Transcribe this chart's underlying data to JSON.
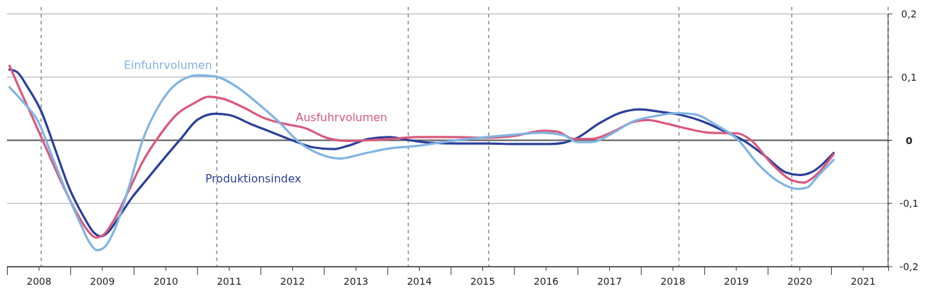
{
  "chart_data": {
    "type": "line",
    "xlim": [
      2008,
      2021.9
    ],
    "ylim": [
      -0.2,
      0.2
    ],
    "xticks": [
      {
        "value": 2008,
        "label": null
      },
      {
        "value": 2008.5,
        "label": "2008"
      },
      {
        "value": 2009,
        "label": null
      },
      {
        "value": 2009.5,
        "label": "2009"
      },
      {
        "value": 2010,
        "label": null
      },
      {
        "value": 2010.5,
        "label": "2010"
      },
      {
        "value": 2011,
        "label": null
      },
      {
        "value": 2011.5,
        "label": "2011"
      },
      {
        "value": 2012,
        "label": null
      },
      {
        "value": 2012.5,
        "label": "2012"
      },
      {
        "value": 2013,
        "label": null
      },
      {
        "value": 2013.5,
        "label": "2013"
      },
      {
        "value": 2014,
        "label": null
      },
      {
        "value": 2014.5,
        "label": "2014"
      },
      {
        "value": 2015,
        "label": null
      },
      {
        "value": 2015.5,
        "label": "2015"
      },
      {
        "value": 2016,
        "label": null
      },
      {
        "value": 2016.5,
        "label": "2016"
      },
      {
        "value": 2017,
        "label": null
      },
      {
        "value": 2017.5,
        "label": "2017"
      },
      {
        "value": 2018,
        "label": null
      },
      {
        "value": 2018.5,
        "label": "2018"
      },
      {
        "value": 2019,
        "label": null
      },
      {
        "value": 2019.5,
        "label": "2019"
      },
      {
        "value": 2020,
        "label": null
      },
      {
        "value": 2020.5,
        "label": "2020"
      },
      {
        "value": 2021,
        "label": null
      },
      {
        "value": 2021.5,
        "label": "2021"
      }
    ],
    "yticks": [
      {
        "value": 0.2,
        "label": "0,2"
      },
      {
        "value": 0.1,
        "label": "0,1"
      },
      {
        "value": 0,
        "label": "0"
      },
      {
        "value": -0.1,
        "label": "-0,1"
      },
      {
        "value": -0.2,
        "label": "-0,2"
      }
    ],
    "grid": "y",
    "line_style": "solid",
    "marker": "none",
    "ref_lines": [
      {
        "axis": "y",
        "value": 0,
        "color": "#555555",
        "line_style": "solid"
      },
      {
        "axis": "x",
        "value": 2008.54,
        "color": "#888888",
        "line_style": "dashed"
      },
      {
        "axis": "x",
        "value": 2011.31,
        "color": "#888888",
        "line_style": "dashed"
      },
      {
        "axis": "x",
        "value": 2014.33,
        "color": "#888888",
        "line_style": "dashed"
      },
      {
        "axis": "x",
        "value": 2015.6,
        "color": "#888888",
        "line_style": "dashed"
      },
      {
        "axis": "x",
        "value": 2018.6,
        "color": "#888888",
        "line_style": "dashed"
      },
      {
        "axis": "x",
        "value": 2020.38,
        "color": "#888888",
        "line_style": "dashed"
      },
      {
        "axis": "x",
        "value": 2021.9,
        "color": "#888888",
        "line_style": "dashed"
      }
    ],
    "series": [
      {
        "name": "Produktionsindex",
        "color": "#2b3f98",
        "x": [
          2008.04,
          2008.16,
          2008.32,
          2008.54,
          2008.76,
          2008.98,
          2009.2,
          2009.37,
          2009.48,
          2009.59,
          2009.75,
          2009.97,
          2010.19,
          2010.46,
          2010.74,
          2011.01,
          2011.29,
          2011.51,
          2011.84,
          2012.17,
          2012.5,
          2012.82,
          2013.15,
          2013.37,
          2013.7,
          2014.03,
          2014.36,
          2014.69,
          2015.13,
          2015.57,
          2016.01,
          2016.56,
          2016.78,
          2017.0,
          2017.33,
          2017.66,
          2017.98,
          2018.31,
          2018.64,
          2018.97,
          2019.3,
          2019.63,
          2019.96,
          2020.29,
          2020.51,
          2020.68,
          2021.04
        ],
        "values": [
          0.112,
          0.108,
          0.085,
          0.046,
          -0.014,
          -0.075,
          -0.119,
          -0.146,
          -0.152,
          -0.146,
          -0.124,
          -0.091,
          -0.064,
          -0.031,
          0.002,
          0.033,
          0.042,
          0.04,
          0.026,
          0.013,
          0.0,
          -0.011,
          -0.014,
          -0.009,
          0.002,
          0.005,
          0.0,
          -0.004,
          -0.005,
          -0.005,
          -0.006,
          -0.006,
          -0.004,
          0.004,
          0.026,
          0.043,
          0.049,
          0.045,
          0.04,
          0.03,
          0.015,
          -0.001,
          -0.025,
          -0.051,
          -0.055,
          -0.051,
          -0.02
        ]
      },
      {
        "name": "Ausfuhrvolumen",
        "color": "#d9597b",
        "x": [
          2008.04,
          2008.21,
          2008.43,
          2008.65,
          2008.87,
          2009.09,
          2009.26,
          2009.4,
          2009.53,
          2009.7,
          2009.92,
          2010.13,
          2010.41,
          2010.68,
          2010.96,
          2011.18,
          2011.4,
          2011.73,
          2012.06,
          2012.38,
          2012.71,
          2013.04,
          2013.37,
          2013.7,
          2014.03,
          2014.47,
          2015.02,
          2015.57,
          2016.01,
          2016.45,
          2016.67,
          2016.94,
          2017.22,
          2017.55,
          2017.88,
          2018.1,
          2018.42,
          2018.75,
          2019.08,
          2019.52,
          2019.74,
          2020.07,
          2020.4,
          2020.57,
          2020.73,
          2021.04
        ],
        "values": [
          0.118,
          0.079,
          0.03,
          -0.02,
          -0.069,
          -0.113,
          -0.141,
          -0.154,
          -0.149,
          -0.124,
          -0.08,
          -0.036,
          0.008,
          0.041,
          0.059,
          0.069,
          0.066,
          0.052,
          0.035,
          0.026,
          0.019,
          0.004,
          -0.001,
          0.0,
          0.002,
          0.005,
          0.005,
          0.004,
          0.007,
          0.015,
          0.014,
          0.002,
          0.002,
          0.013,
          0.029,
          0.032,
          0.026,
          0.018,
          0.012,
          0.011,
          0.0,
          -0.038,
          -0.064,
          -0.067,
          -0.058,
          -0.022
        ]
      },
      {
        "name": "Einfuhrvolumen",
        "color": "#80b4e2",
        "x": [
          2008.04,
          2008.27,
          2008.49,
          2008.71,
          2008.93,
          2009.15,
          2009.31,
          2009.42,
          2009.53,
          2009.7,
          2009.92,
          2010.13,
          2010.41,
          2010.68,
          2011.01,
          2011.29,
          2011.62,
          2011.95,
          2012.28,
          2012.61,
          2012.94,
          2013.26,
          2013.59,
          2014.03,
          2014.47,
          2015.02,
          2015.57,
          2016.01,
          2016.45,
          2016.78,
          2017.0,
          2017.22,
          2017.55,
          2017.88,
          2018.21,
          2018.59,
          2018.86,
          2019.19,
          2019.52,
          2019.85,
          2020.18,
          2020.47,
          2020.62,
          2020.78,
          2021.04
        ],
        "values": [
          0.084,
          0.059,
          0.03,
          -0.025,
          -0.08,
          -0.13,
          -0.163,
          -0.174,
          -0.17,
          -0.141,
          -0.075,
          -0.003,
          0.057,
          0.09,
          0.103,
          0.101,
          0.085,
          0.059,
          0.03,
          -0.003,
          -0.022,
          -0.029,
          -0.022,
          -0.013,
          -0.009,
          -0.001,
          0.005,
          0.009,
          0.012,
          0.008,
          -0.003,
          -0.003,
          0.011,
          0.03,
          0.038,
          0.043,
          0.041,
          0.024,
          0.002,
          -0.038,
          -0.066,
          -0.077,
          -0.075,
          -0.058,
          -0.031
        ]
      }
    ]
  }
}
